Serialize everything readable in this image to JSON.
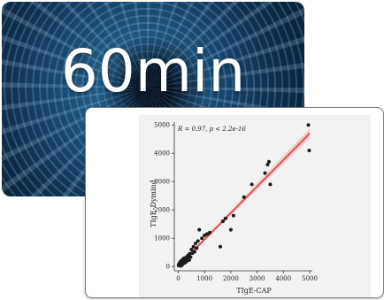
{
  "banner": {
    "title": "60min"
  },
  "chart_data": {
    "type": "scatter",
    "xlabel": "TIgE-CAP",
    "ylabel": "TIgE-Dymind",
    "annotation": "R = 0.97, p < 2.2e-16",
    "xlim": [
      -150,
      5100
    ],
    "ylim": [
      -150,
      5100
    ],
    "xticks": [
      0,
      1000,
      2000,
      3000,
      4000,
      5000
    ],
    "yticks": [
      0,
      1000,
      2000,
      3000,
      4000,
      5000
    ],
    "grid": false,
    "fit_line": {
      "x": [
        0,
        5000
      ],
      "y": [
        20,
        4700
      ]
    },
    "points": [
      [
        10,
        40
      ],
      [
        30,
        90
      ],
      [
        50,
        70
      ],
      [
        70,
        160
      ],
      [
        100,
        120
      ],
      [
        120,
        210
      ],
      [
        150,
        90
      ],
      [
        180,
        260
      ],
      [
        200,
        180
      ],
      [
        230,
        300
      ],
      [
        260,
        220
      ],
      [
        300,
        320
      ],
      [
        330,
        200
      ],
      [
        360,
        380
      ],
      [
        400,
        300
      ],
      [
        430,
        450
      ],
      [
        470,
        340
      ],
      [
        500,
        600
      ],
      [
        540,
        470
      ],
      [
        580,
        700
      ],
      [
        620,
        520
      ],
      [
        660,
        820
      ],
      [
        700,
        650
      ],
      [
        750,
        900
      ],
      [
        800,
        1300
      ],
      [
        900,
        1000
      ],
      [
        1000,
        1100
      ],
      [
        1100,
        1150
      ],
      [
        1200,
        1200
      ],
      [
        1600,
        700
      ],
      [
        1700,
        1600
      ],
      [
        1800,
        1700
      ],
      [
        2000,
        1300
      ],
      [
        2100,
        1800
      ],
      [
        2500,
        2450
      ],
      [
        2800,
        2900
      ],
      [
        3300,
        3300
      ],
      [
        3400,
        3600
      ],
      [
        3450,
        3700
      ],
      [
        3500,
        2900
      ],
      [
        4950,
        5000
      ],
      [
        4980,
        4100
      ],
      [
        80,
        20
      ],
      [
        140,
        50
      ],
      [
        220,
        120
      ],
      [
        280,
        150
      ],
      [
        350,
        260
      ],
      [
        420,
        230
      ]
    ]
  }
}
